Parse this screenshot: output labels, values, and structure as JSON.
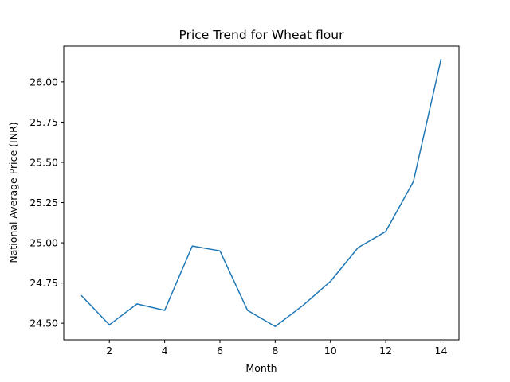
{
  "chart_data": {
    "type": "line",
    "title": "Price Trend for Wheat flour",
    "xlabel": "Month",
    "ylabel": "National Average Price (INR)",
    "x": [
      1,
      2,
      3,
      4,
      5,
      6,
      7,
      8,
      9,
      10,
      11,
      12,
      13,
      14
    ],
    "series": [
      {
        "values": [
          24.67,
          24.49,
          24.62,
          24.58,
          24.98,
          24.95,
          24.58,
          24.48,
          24.61,
          24.76,
          24.97,
          25.07,
          25.38,
          26.14
        ],
        "color": "#1f77b4"
      }
    ],
    "xticks": [
      2,
      4,
      6,
      8,
      10,
      12,
      14
    ],
    "xtick_labels": [
      "2",
      "4",
      "6",
      "8",
      "10",
      "12",
      "14"
    ],
    "yticks": [
      24.5,
      24.75,
      25.0,
      25.25,
      25.5,
      25.75,
      26.0
    ],
    "ytick_labels": [
      "24.50",
      "24.75",
      "25.00",
      "25.25",
      "25.50",
      "25.75",
      "26.00"
    ],
    "xlim": [
      0.35,
      14.65
    ],
    "ylim": [
      24.397,
      26.222
    ],
    "grid": false,
    "legend": "none"
  }
}
